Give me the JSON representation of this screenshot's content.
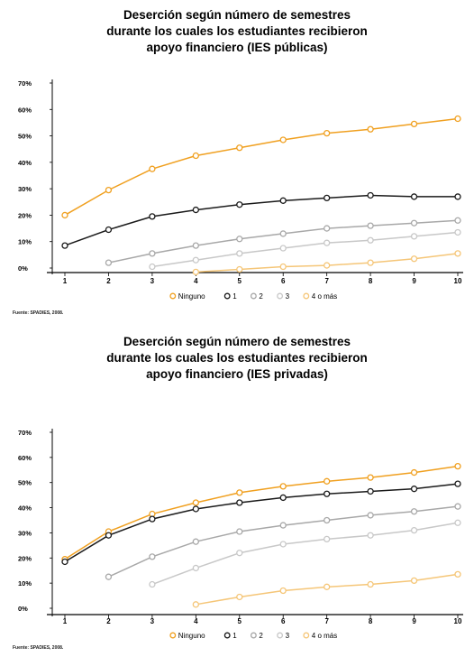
{
  "colors": {
    "ninguno": "#f0a020",
    "uno": "#1a1a1a",
    "dos": "#a8a8a8",
    "tres": "#c8c8c8",
    "cuatro": "#f5c678"
  },
  "chart_data": [
    {
      "type": "line",
      "title": "Deserción según número de semestres\ndurante los cuales los estudiantes recibieron\napoyo financiero (IES públicas)",
      "xlabel": "",
      "ylabel": "",
      "x": [
        1,
        2,
        3,
        4,
        5,
        6,
        7,
        8,
        9,
        10
      ],
      "x_tick_labels": [
        "1",
        "2",
        "3",
        "4",
        "5",
        "6",
        "7",
        "8",
        "9",
        "10"
      ],
      "ylim": [
        0,
        70
      ],
      "y_tick_labels": [
        "0%",
        "10%",
        "20%",
        "30%",
        "40%",
        "50%",
        "60%",
        "70%"
      ],
      "grid": false,
      "legend_position": "bottom",
      "series": [
        {
          "name": "Ninguno",
          "color_key": "ninguno",
          "x": [
            1,
            2,
            3,
            4,
            5,
            6,
            7,
            8,
            9,
            10
          ],
          "values": [
            20,
            29.5,
            37.5,
            42.5,
            45.5,
            48.5,
            51,
            52.5,
            54.5,
            56.5
          ]
        },
        {
          "name": "1",
          "color_key": "uno",
          "x": [
            1,
            2,
            3,
            4,
            5,
            6,
            7,
            8,
            9,
            10
          ],
          "values": [
            8.5,
            14.5,
            19.5,
            22,
            24,
            25.5,
            26.5,
            27.5,
            27,
            27
          ]
        },
        {
          "name": "2",
          "color_key": "dos",
          "x": [
            2,
            3,
            4,
            5,
            6,
            7,
            8,
            9,
            10
          ],
          "values": [
            2,
            5.5,
            8.5,
            11,
            13,
            15,
            16,
            17,
            18
          ]
        },
        {
          "name": "3",
          "color_key": "tres",
          "x": [
            3,
            4,
            5,
            6,
            7,
            8,
            9,
            10
          ],
          "values": [
            0.5,
            3,
            5.5,
            7.5,
            9.5,
            10.5,
            12,
            13.5
          ]
        },
        {
          "name": "4 o más",
          "color_key": "cuatro",
          "x": [
            4,
            5,
            6,
            7,
            8,
            9,
            10
          ],
          "values": [
            -1.5,
            -0.5,
            0.5,
            1,
            2,
            3.5,
            5.5
          ]
        }
      ],
      "source": "Fuente: SPADIES, 2008."
    },
    {
      "type": "line",
      "title": "Deserción según número de semestres\ndurante los cuales los estudiantes recibieron\napoyo financiero (IES privadas)",
      "xlabel": "",
      "ylabel": "",
      "x": [
        1,
        2,
        3,
        4,
        5,
        6,
        7,
        8,
        9,
        10
      ],
      "x_tick_labels": [
        "1",
        "2",
        "3",
        "4",
        "5",
        "6",
        "7",
        "8",
        "9",
        "10"
      ],
      "ylim": [
        0,
        70
      ],
      "y_tick_labels": [
        "0%",
        "10%",
        "20%",
        "30%",
        "40%",
        "50%",
        "60%",
        "70%"
      ],
      "grid": false,
      "legend_position": "bottom",
      "series": [
        {
          "name": "Ninguno",
          "color_key": "ninguno",
          "x": [
            1,
            2,
            3,
            4,
            5,
            6,
            7,
            8,
            9,
            10
          ],
          "values": [
            19.5,
            30.5,
            37.5,
            42,
            46,
            48.5,
            50.5,
            52,
            54,
            56.5
          ]
        },
        {
          "name": "1",
          "color_key": "uno",
          "x": [
            1,
            2,
            3,
            4,
            5,
            6,
            7,
            8,
            9,
            10
          ],
          "values": [
            18.5,
            29,
            35.5,
            39.5,
            42,
            44,
            45.5,
            46.5,
            47.5,
            49.5
          ]
        },
        {
          "name": "2",
          "color_key": "dos",
          "x": [
            2,
            3,
            4,
            5,
            6,
            7,
            8,
            9,
            10
          ],
          "values": [
            12.5,
            20.5,
            26.5,
            30.5,
            33,
            35,
            37,
            38.5,
            40.5
          ]
        },
        {
          "name": "3",
          "color_key": "tres",
          "x": [
            3,
            4,
            5,
            6,
            7,
            8,
            9,
            10
          ],
          "values": [
            9.5,
            16,
            22,
            25.5,
            27.5,
            29,
            31,
            34
          ]
        },
        {
          "name": "4 o más",
          "color_key": "cuatro",
          "x": [
            4,
            5,
            6,
            7,
            8,
            9,
            10
          ],
          "values": [
            1.5,
            4.5,
            7,
            8.5,
            9.5,
            11,
            13.5
          ]
        }
      ],
      "source": "Fuente: SPADIES, 2008."
    }
  ]
}
